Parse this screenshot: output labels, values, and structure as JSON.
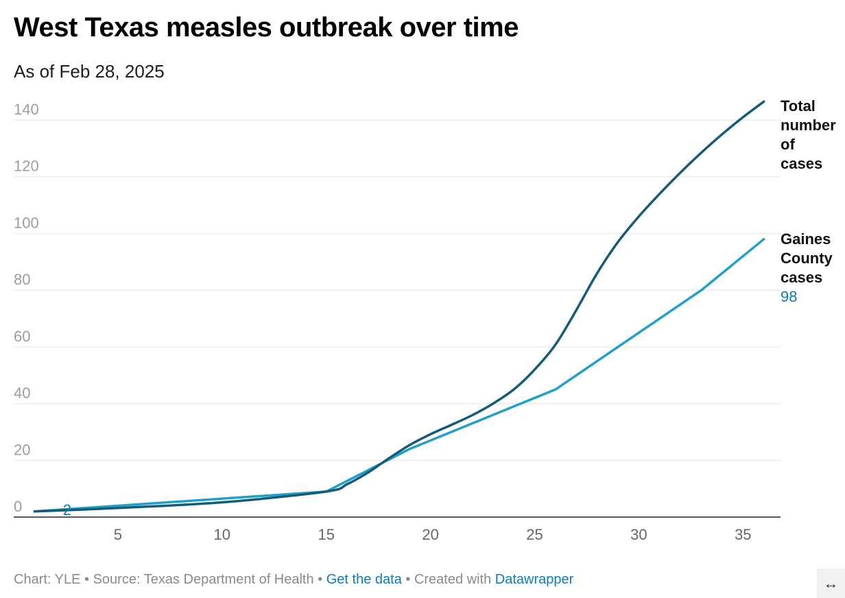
{
  "chart_data": {
    "type": "line",
    "title": "West Texas measles outbreak over time",
    "subtitle": "As of Feb 28, 2025",
    "xlabel": "",
    "ylabel": "",
    "xlim": [
      0,
      36.8
    ],
    "ylim": [
      0,
      140
    ],
    "x_ticks": [
      5,
      10,
      15,
      20,
      25,
      30,
      35
    ],
    "y_ticks": [
      0,
      20,
      40,
      60,
      80,
      100,
      120,
      140
    ],
    "grid": true,
    "series": [
      {
        "name": "Total number of cases",
        "label_lines": [
          "Total",
          "number",
          "of",
          "cases"
        ],
        "color": "#155a78",
        "x": [
          1,
          5,
          10,
          15,
          16,
          17,
          18,
          19,
          20,
          21,
          22,
          23,
          24,
          25,
          26,
          27,
          28,
          29,
          30,
          31,
          32,
          33,
          34,
          35,
          36
        ],
        "values": [
          2,
          3.2,
          5.2,
          9,
          11.6,
          15.7,
          20.7,
          25.4,
          29.2,
          32.5,
          35.9,
          40,
          45,
          52,
          60.8,
          73,
          86,
          97,
          106,
          114,
          121.5,
          128.5,
          135,
          141,
          146.5
        ]
      },
      {
        "name": "Gaines County cases",
        "label_lines": [
          "Gaines",
          "County",
          "cases"
        ],
        "end_label": "98",
        "start_label": "2",
        "color": "#1fa0c8",
        "x": [
          1,
          15,
          19,
          26,
          33,
          36
        ],
        "values": [
          2,
          9,
          24,
          45,
          80,
          98
        ]
      }
    ]
  },
  "footer": {
    "chart_credit": "Chart: YLE",
    "sep1": " • ",
    "source": "Source: Texas Department of Health",
    "sep2": " • ",
    "get_data": "Get the data",
    "sep3": " • ",
    "created_with": "Created with ",
    "datawrapper": "Datawrapper"
  },
  "expand_icon": "↔"
}
